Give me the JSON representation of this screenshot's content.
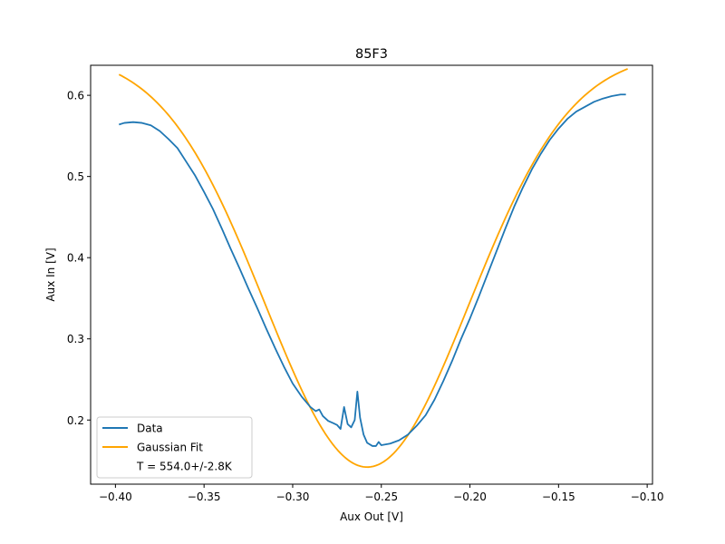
{
  "chart_data": {
    "type": "line",
    "title": "85F3",
    "xlabel": "Aux Out [V]",
    "ylabel": "Aux In [V]",
    "xlim": [
      -0.414,
      -0.097
    ],
    "ylim": [
      0.121,
      0.637
    ],
    "x_ticks": [
      -0.4,
      -0.35,
      -0.3,
      -0.25,
      -0.2,
      -0.15,
      -0.1
    ],
    "x_tick_labels": [
      "−0.40",
      "−0.35",
      "−0.30",
      "−0.25",
      "−0.20",
      "−0.15",
      "−0.10"
    ],
    "y_ticks": [
      0.2,
      0.3,
      0.4,
      0.5,
      0.6
    ],
    "y_tick_labels": [
      "0.2",
      "0.3",
      "0.4",
      "0.5",
      "0.6"
    ],
    "grid": false,
    "legend_position": "lower-left",
    "legend_note": "T = 554.0+/-2.8K",
    "series": [
      {
        "name": "Data",
        "color": "#1f77b4",
        "points": [
          [
            -0.398,
            0.564
          ],
          [
            -0.395,
            0.566
          ],
          [
            -0.39,
            0.567
          ],
          [
            -0.385,
            0.566
          ],
          [
            -0.38,
            0.563
          ],
          [
            -0.375,
            0.556
          ],
          [
            -0.37,
            0.546
          ],
          [
            -0.365,
            0.535
          ],
          [
            -0.36,
            0.518
          ],
          [
            -0.355,
            0.501
          ],
          [
            -0.35,
            0.481
          ],
          [
            -0.345,
            0.46
          ],
          [
            -0.34,
            0.436
          ],
          [
            -0.335,
            0.411
          ],
          [
            -0.33,
            0.387
          ],
          [
            -0.325,
            0.362
          ],
          [
            -0.32,
            0.338
          ],
          [
            -0.315,
            0.313
          ],
          [
            -0.31,
            0.289
          ],
          [
            -0.305,
            0.266
          ],
          [
            -0.3,
            0.245
          ],
          [
            -0.295,
            0.229
          ],
          [
            -0.29,
            0.216
          ],
          [
            -0.287,
            0.211
          ],
          [
            -0.285,
            0.213
          ],
          [
            -0.283,
            0.205
          ],
          [
            -0.28,
            0.199
          ],
          [
            -0.277,
            0.196
          ],
          [
            -0.275,
            0.194
          ],
          [
            -0.273,
            0.189
          ],
          [
            -0.271,
            0.216
          ],
          [
            -0.269,
            0.195
          ],
          [
            -0.267,
            0.191
          ],
          [
            -0.265,
            0.2
          ],
          [
            -0.2635,
            0.235
          ],
          [
            -0.262,
            0.203
          ],
          [
            -0.26,
            0.182
          ],
          [
            -0.258,
            0.172
          ],
          [
            -0.255,
            0.168
          ],
          [
            -0.253,
            0.168
          ],
          [
            -0.2515,
            0.173
          ],
          [
            -0.25,
            0.169
          ],
          [
            -0.245,
            0.171
          ],
          [
            -0.24,
            0.175
          ],
          [
            -0.235,
            0.182
          ],
          [
            -0.23,
            0.193
          ],
          [
            -0.225,
            0.206
          ],
          [
            -0.22,
            0.225
          ],
          [
            -0.215,
            0.248
          ],
          [
            -0.21,
            0.273
          ],
          [
            -0.205,
            0.3
          ],
          [
            -0.2,
            0.325
          ],
          [
            -0.195,
            0.352
          ],
          [
            -0.19,
            0.38
          ],
          [
            -0.185,
            0.408
          ],
          [
            -0.18,
            0.436
          ],
          [
            -0.175,
            0.463
          ],
          [
            -0.17,
            0.487
          ],
          [
            -0.165,
            0.509
          ],
          [
            -0.16,
            0.528
          ],
          [
            -0.155,
            0.545
          ],
          [
            -0.15,
            0.559
          ],
          [
            -0.145,
            0.571
          ],
          [
            -0.14,
            0.58
          ],
          [
            -0.135,
            0.586
          ],
          [
            -0.13,
            0.592
          ],
          [
            -0.125,
            0.596
          ],
          [
            -0.12,
            0.599
          ],
          [
            -0.115,
            0.601
          ],
          [
            -0.112,
            0.601
          ]
        ]
      },
      {
        "name": "Gaussian Fit",
        "color": "#ffa500",
        "fit": {
          "baseline": 0.652,
          "amplitude": -0.51,
          "center": -0.258,
          "sigma": 0.0575
        },
        "x_range": [
          -0.398,
          -0.111
        ]
      }
    ]
  }
}
